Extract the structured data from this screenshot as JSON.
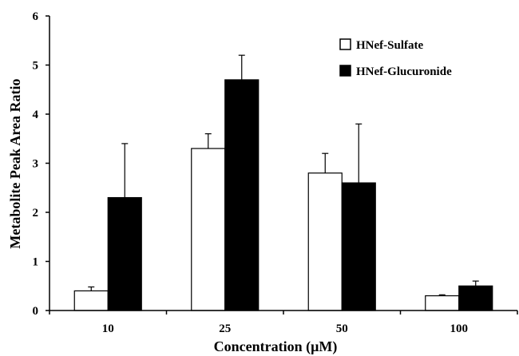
{
  "chart_data": {
    "type": "bar",
    "title": "",
    "xlabel": "Concentration (μM)",
    "ylabel": "Metabolite Peak Area Ratio",
    "categories": [
      "10",
      "25",
      "50",
      "100"
    ],
    "ylim": [
      0,
      6
    ],
    "yticks": [
      "0",
      "1",
      "2",
      "3",
      "4",
      "5",
      "6"
    ],
    "grid": false,
    "legend_position": "top-right",
    "error_bars": "upper",
    "series": [
      {
        "name": "HNef-Sulfate",
        "color": "#ffffff",
        "values": [
          0.4,
          3.3,
          2.8,
          0.3
        ],
        "errors": [
          0.08,
          0.3,
          0.4,
          0.02
        ]
      },
      {
        "name": "HNef-Glucuronide",
        "color": "#000000",
        "values": [
          2.3,
          4.7,
          2.6,
          0.5
        ],
        "errors": [
          1.1,
          0.5,
          1.2,
          0.1
        ]
      }
    ]
  }
}
